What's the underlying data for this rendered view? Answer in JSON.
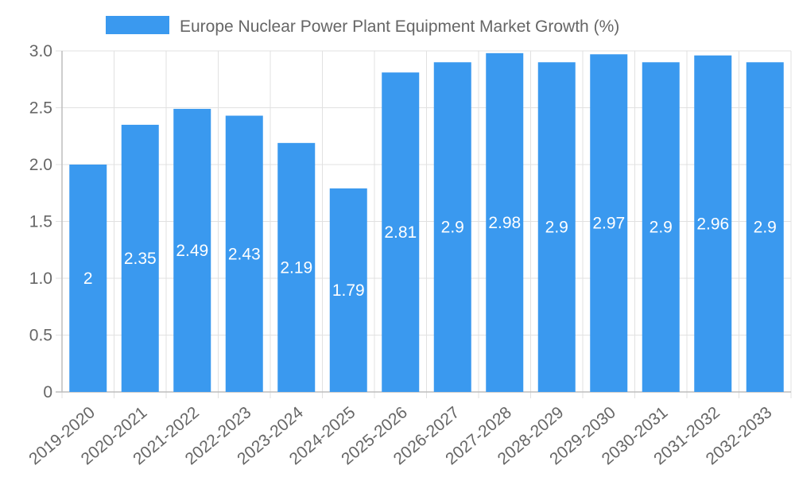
{
  "chart_data": {
    "type": "bar",
    "title": "",
    "xlabel": "",
    "ylabel": "",
    "legend": {
      "label": "Europe Nuclear Power Plant Equipment Market Growth (%)",
      "position": "top"
    },
    "categories": [
      "2019-2020",
      "2020-2021",
      "2021-2022",
      "2022-2023",
      "2023-2024",
      "2024-2025",
      "2025-2026",
      "2026-2027",
      "2027-2028",
      "2028-2029",
      "2029-2030",
      "2030-2031",
      "2031-2032",
      "2032-2033"
    ],
    "values": [
      2,
      2.35,
      2.49,
      2.43,
      2.19,
      1.79,
      2.81,
      2.9,
      2.98,
      2.9,
      2.97,
      2.9,
      2.96,
      2.9
    ],
    "value_labels": [
      "2",
      "2.35",
      "2.49",
      "2.43",
      "2.19",
      "1.79",
      "2.81",
      "2.9",
      "2.98",
      "2.9",
      "2.97",
      "2.9",
      "2.96",
      "2.9"
    ],
    "y_ticks": [
      "0",
      "0.5",
      "1.0",
      "1.5",
      "2.0",
      "2.5",
      "3.0"
    ],
    "ylim": [
      0,
      3.0
    ],
    "grid": true,
    "colors": {
      "bar": "#3a99ef",
      "grid": "#e1e1e1",
      "axis": "#bdbdbd",
      "text": "#666666",
      "label": "#ffffff"
    }
  }
}
